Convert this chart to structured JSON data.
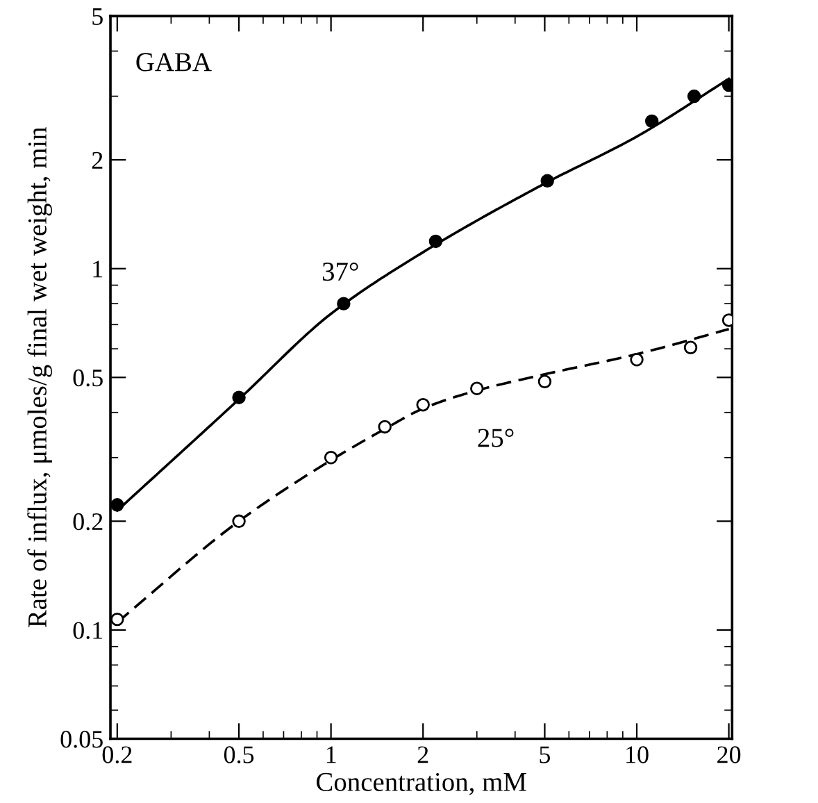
{
  "chart_data": {
    "type": "scatter",
    "xlabel": "Concentration, mM",
    "ylabel": "Rate of influx, μmoles/g final wet weight, min",
    "log": "xy",
    "xlim": [
      0.19,
      20.5
    ],
    "xticks": [
      0.2,
      0.5,
      1,
      2,
      5,
      10,
      20
    ],
    "ylim": [
      0.05,
      5
    ],
    "yticks": [
      0.05,
      0.1,
      0.2,
      0.5,
      1,
      2,
      5
    ],
    "grid": false,
    "legend": false,
    "series": [
      {
        "type": "line",
        "color": "#000000",
        "line_style": "solid",
        "marker": "none",
        "x": [
          0.2,
          0.5,
          1,
          2,
          5,
          10,
          20
        ],
        "values": [
          0.214,
          0.435,
          0.75,
          1.11,
          1.72,
          2.32,
          3.35
        ]
      },
      {
        "type": "line",
        "color": "#000000",
        "line_style": "dashed",
        "marker": "none",
        "x": [
          0.2,
          0.5,
          1,
          1.5,
          2,
          3,
          5,
          10,
          20
        ],
        "values": [
          0.105,
          0.2,
          0.295,
          0.36,
          0.41,
          0.46,
          0.51,
          0.58,
          0.68
        ]
      },
      {
        "color": "#000000",
        "marker": "circle",
        "x": [
          0.2,
          0.5,
          1.1,
          2.2,
          5.1,
          11.2,
          15.4,
          20
        ],
        "values": [
          0.222,
          0.44,
          0.8,
          1.19,
          1.75,
          2.56,
          3.0,
          3.22
        ]
      },
      {
        "color": "#ffffff",
        "marker": "circle",
        "x": [
          0.2,
          0.5,
          1,
          1.5,
          2,
          3,
          5,
          10,
          15,
          20
        ],
        "values": [
          0.107,
          0.2,
          0.3,
          0.365,
          0.42,
          0.466,
          0.487,
          0.56,
          0.605,
          0.72
        ]
      }
    ],
    "annotations": [
      "GABA",
      "37°",
      "25°"
    ]
  }
}
